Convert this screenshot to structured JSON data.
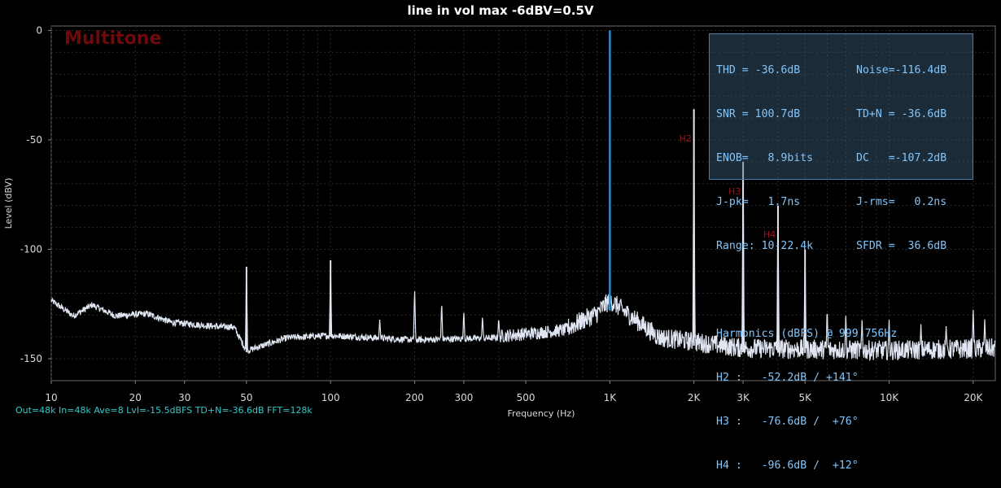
{
  "title": "line in vol max  -6dBV=0.5V",
  "watermark": "Multitone",
  "footer": "Out=48k In=48k Ave=8 Lvl=-15.5dBFS TD+N=-36.6dB FFT=128k",
  "stats": {
    "rows": [
      {
        "left": "THD = -36.6dB",
        "right": "Noise=-116.4dB"
      },
      {
        "left": "SNR = 100.7dB",
        "right": "TD+N = -36.6dB"
      },
      {
        "left": "ENOB=   8.9bits",
        "right": "DC   =-107.2dB"
      },
      {
        "left": "J-pk=   1.7ns",
        "right": "J-rms=   0.2ns"
      },
      {
        "left": "Range: 10-22.4k",
        "right": "SFDR =  36.6dB"
      }
    ],
    "harmonics_title": "Harmonics (dBFS) @ 999.756Hz",
    "harmonics": [
      "H2 :   -52.2dB / +141°",
      "H3 :   -76.6dB /  +76°",
      "H4 :   -96.6dB /  +12°"
    ]
  },
  "chart_data": {
    "type": "line",
    "title": "line in vol max  -6dBV=0.5V",
    "xlabel": "Frequency (Hz)",
    "ylabel": "Level (dBV)",
    "x_scale": "log",
    "xlim": [
      10,
      24000
    ],
    "ylim": [
      -160,
      2
    ],
    "x_ticks": [
      {
        "value": 10,
        "label": "10"
      },
      {
        "value": 20,
        "label": "20"
      },
      {
        "value": 30,
        "label": "30"
      },
      {
        "value": 50,
        "label": "50"
      },
      {
        "value": 100,
        "label": "100"
      },
      {
        "value": 200,
        "label": "200"
      },
      {
        "value": 300,
        "label": "300"
      },
      {
        "value": 500,
        "label": "500"
      },
      {
        "value": 1000,
        "label": "1K"
      },
      {
        "value": 2000,
        "label": "2K"
      },
      {
        "value": 3000,
        "label": "3K"
      },
      {
        "value": 5000,
        "label": "5K"
      },
      {
        "value": 10000,
        "label": "10K"
      },
      {
        "value": 20000,
        "label": "20K"
      }
    ],
    "y_ticks": [
      {
        "value": 0,
        "label": "0"
      },
      {
        "value": -50,
        "label": "-50"
      },
      {
        "value": -100,
        "label": "-100"
      },
      {
        "value": -150,
        "label": "-150"
      }
    ],
    "grid": true,
    "series": [
      {
        "color": "#dfe6f2",
        "spectrum_envelope": [
          [
            10,
            -124
          ],
          [
            12,
            -131
          ],
          [
            14,
            -126
          ],
          [
            17,
            -131
          ],
          [
            22,
            -130
          ],
          [
            27,
            -134
          ],
          [
            33,
            -135
          ],
          [
            40,
            -136
          ],
          [
            45,
            -136
          ],
          [
            50,
            -147
          ],
          [
            70,
            -141
          ],
          [
            100,
            -140
          ],
          [
            200,
            -142
          ],
          [
            400,
            -141
          ],
          [
            700,
            -138
          ],
          [
            900,
            -131
          ],
          [
            1000,
            -125
          ],
          [
            1150,
            -131
          ],
          [
            1500,
            -142
          ],
          [
            3000,
            -147
          ],
          [
            10000,
            -148
          ],
          [
            24000,
            -147
          ]
        ],
        "peaks": [
          [
            50,
            -108
          ],
          [
            100,
            -105
          ],
          [
            150,
            -132
          ],
          [
            200,
            -117
          ],
          [
            250,
            -123
          ],
          [
            300,
            -128
          ],
          [
            350,
            -130
          ],
          [
            400,
            -131
          ],
          [
            2000,
            -36
          ],
          [
            3000,
            -60
          ],
          [
            4000,
            -80
          ],
          [
            5000,
            -100
          ],
          [
            6000,
            -126
          ],
          [
            7000,
            -130
          ],
          [
            8000,
            -131
          ],
          [
            10000,
            -132
          ],
          [
            13000,
            -134
          ],
          [
            16000,
            -135
          ],
          [
            20000,
            -126
          ],
          [
            22000,
            -131
          ]
        ]
      },
      {
        "color": "#2a8cc8",
        "points": [
          [
            1000,
            0
          ]
        ]
      }
    ],
    "annotations": [
      {
        "text": "H2",
        "x": 2000,
        "y": -50
      },
      {
        "text": "H3",
        "x": 3000,
        "y": -74
      },
      {
        "text": "H4",
        "x": 4000,
        "y": -94
      }
    ]
  },
  "colors": {
    "background": "#000000",
    "spectrum": "#dfe6f2",
    "fundamental": "#2a8cc8",
    "stats_text": "#7fc6ff",
    "harmonic_label": "#a0141a",
    "footer": "#38c6c6"
  }
}
